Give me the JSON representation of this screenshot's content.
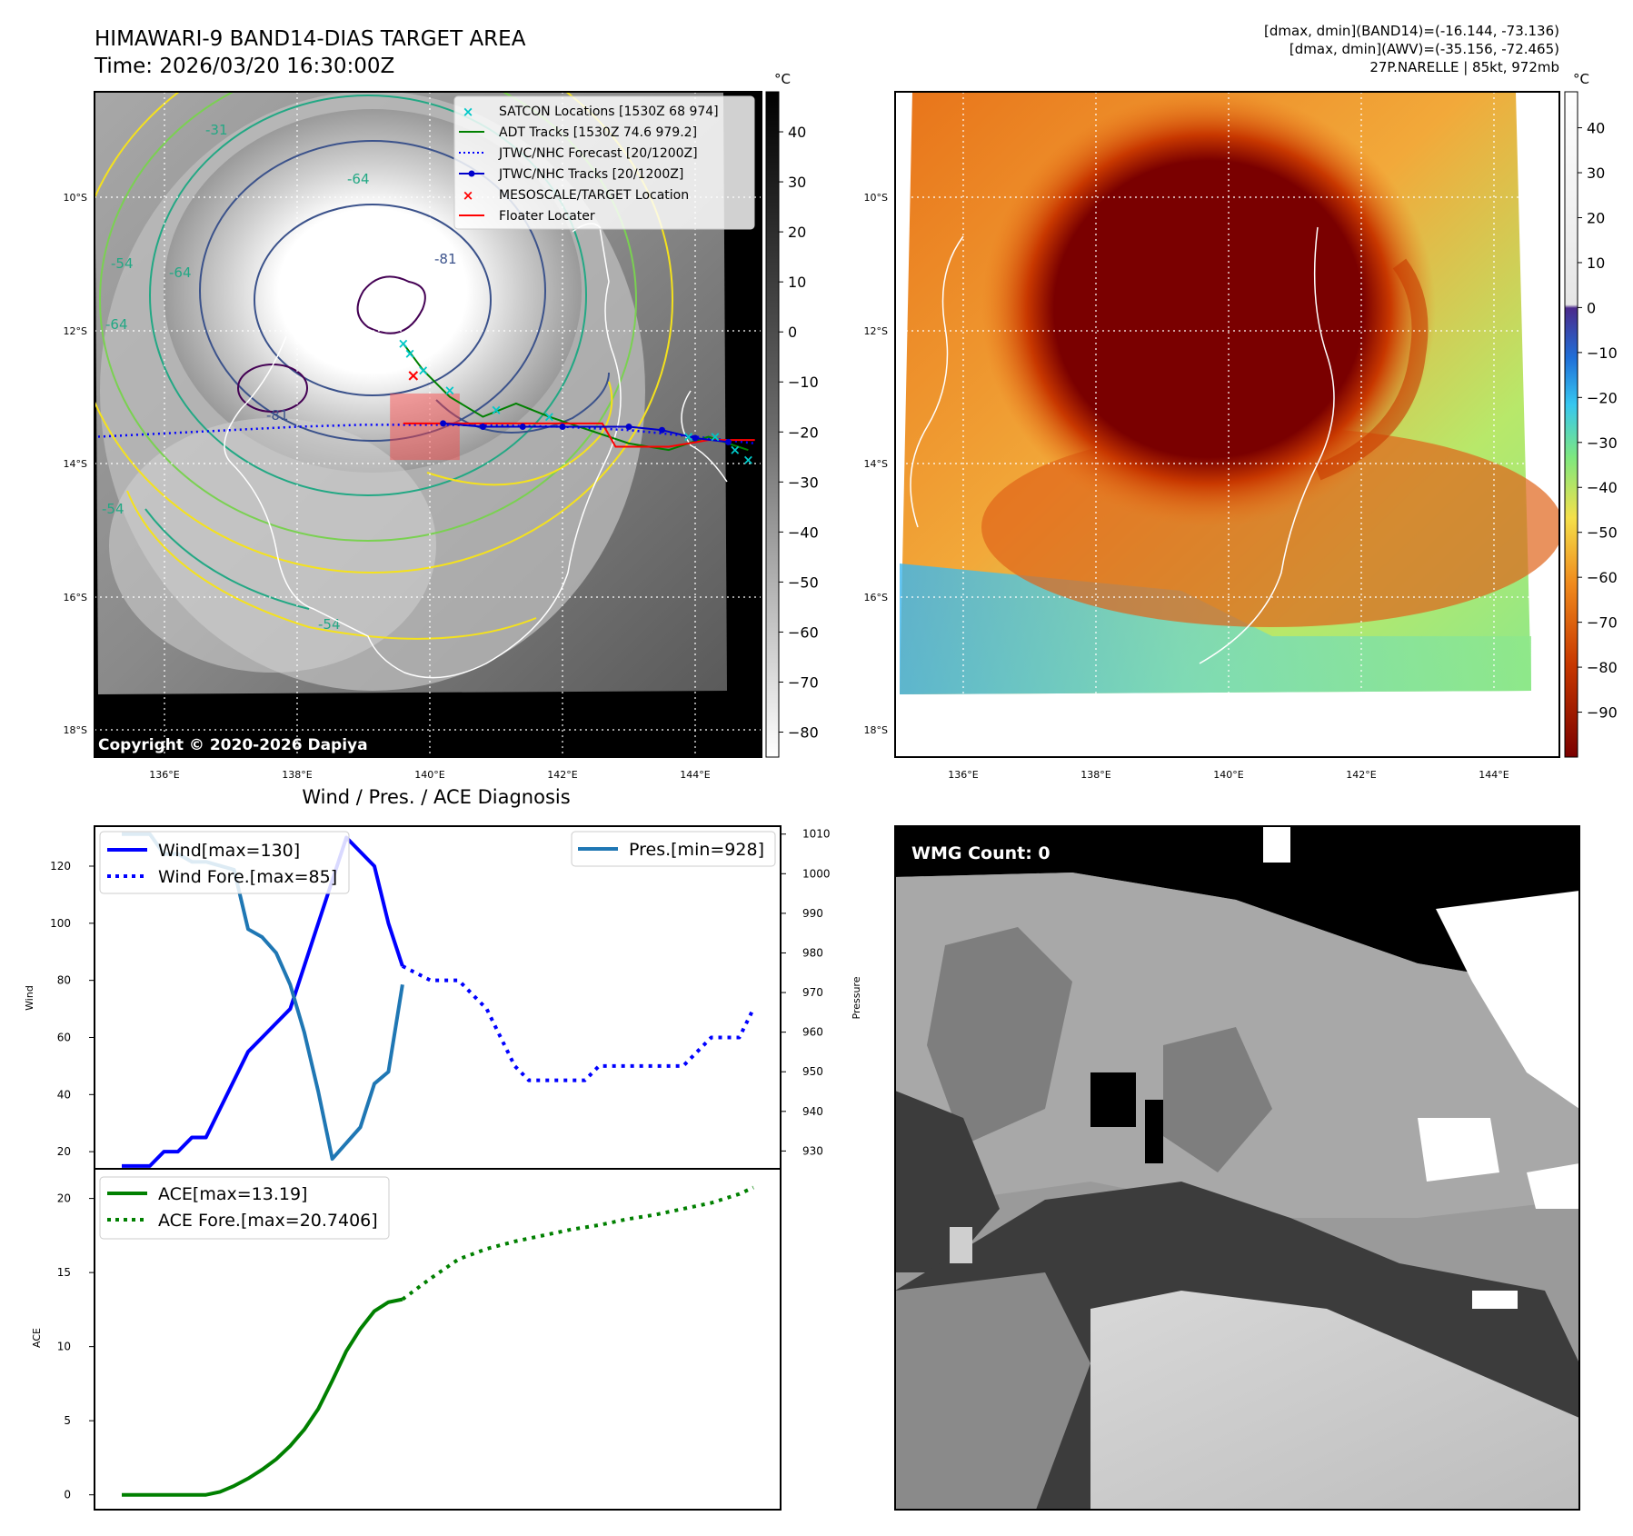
{
  "header": {
    "title_line1": "HIMAWARI-9 BAND14-DIAS TARGET AREA",
    "title_line2": "Time: 2026/03/20 16:30:00Z",
    "info_line1": "[dmax, dmin](BAND14)=(-16.144, -73.136)",
    "info_line2": "[dmax, dmin](AWV)=(-35.156, -72.465)",
    "info_line3": "27P.NARELLE | 85kt, 972mb"
  },
  "colors": {
    "wind": "#0000ff",
    "pressure": "#1f77b4",
    "ace": "#008000",
    "satcon": "#00c8c8",
    "adt": "#008000",
    "jtwc_forecast": "#0000ff",
    "jtwc_track": "#0000cc",
    "target": "#ff0000",
    "floater": "#ff0000",
    "contour_yellow": "#f5e21c",
    "contour_green": "#7ad151",
    "contour_teal": "#22a884",
    "contour_blue": "#3b528b",
    "contour_purple": "#440154"
  },
  "map_left": {
    "unit_label": "°C",
    "colorbar_ticks": [
      "40",
      "30",
      "20",
      "10",
      "0",
      "−10",
      "−20",
      "−30",
      "−40",
      "−50",
      "−60",
      "−70",
      "−80"
    ],
    "colorbar_range": [
      48,
      -85
    ],
    "lat_labels": [
      "10°S",
      "12°S",
      "14°S",
      "16°S",
      "18°S"
    ],
    "lon_labels": [
      "136°E",
      "138°E",
      "140°E",
      "142°E",
      "144°E"
    ],
    "contour_labels": [
      "-31",
      "-64",
      "-81",
      "-54",
      "-64",
      "-81",
      "-54",
      "-64",
      "-54"
    ],
    "copyright": "Copyright © 2020-2026 Dapiya",
    "legend": [
      {
        "label": "SATCON Locations [1530Z 68 974]",
        "icon": "x-marker-icon",
        "color": "#00c8c8"
      },
      {
        "label": "ADT Tracks [1530Z 74.6 979.2]",
        "icon": "solid-line-icon",
        "color": "#008000"
      },
      {
        "label": "JTWC/NHC Forecast [20/1200Z]",
        "icon": "dotted-line-icon",
        "color": "#0000ff"
      },
      {
        "label": "JTWC/NHC Tracks [20/1200Z]",
        "icon": "line-dot-icon",
        "color": "#0000cc"
      },
      {
        "label": "MESOSCALE/TARGET Location",
        "icon": "x-marker-icon",
        "color": "#ff0000"
      },
      {
        "label": "Floater Locater",
        "icon": "solid-line-icon",
        "color": "#ff0000"
      }
    ],
    "tracks": {
      "jtwc_forecast_lonlat": [
        [
          135.0,
          -13.6
        ],
        [
          136.0,
          -13.55
        ],
        [
          137.0,
          -13.5
        ],
        [
          138.0,
          -13.45
        ],
        [
          139.0,
          -13.42
        ],
        [
          140.0,
          -13.42
        ],
        [
          141.0,
          -13.43
        ],
        [
          142.0,
          -13.45
        ],
        [
          143.0,
          -13.5
        ],
        [
          144.0,
          -13.6
        ],
        [
          144.9,
          -13.7
        ]
      ],
      "jtwc_track_lonlat": [
        [
          140.2,
          -13.4
        ],
        [
          140.8,
          -13.45
        ],
        [
          141.4,
          -13.45
        ],
        [
          142.0,
          -13.45
        ],
        [
          143.0,
          -13.45
        ],
        [
          143.5,
          -13.5
        ],
        [
          144.0,
          -13.62
        ],
        [
          144.5,
          -13.68
        ]
      ],
      "floater_lonlat": [
        [
          139.6,
          -13.4
        ],
        [
          142.6,
          -13.4
        ],
        [
          142.8,
          -13.75
        ],
        [
          143.6,
          -13.75
        ],
        [
          144.2,
          -13.65
        ],
        [
          144.9,
          -13.65
        ]
      ],
      "adt_lonlat": [
        [
          139.6,
          -12.2
        ],
        [
          139.9,
          -12.6
        ],
        [
          140.3,
          -13.0
        ],
        [
          140.8,
          -13.3
        ],
        [
          141.3,
          -13.1
        ],
        [
          141.8,
          -13.3
        ],
        [
          142.4,
          -13.5
        ],
        [
          143.0,
          -13.7
        ],
        [
          143.6,
          -13.8
        ],
        [
          144.2,
          -13.6
        ],
        [
          144.8,
          -13.8
        ]
      ],
      "satcon_lonlat": [
        [
          139.6,
          -12.2
        ],
        [
          139.7,
          -12.35
        ],
        [
          139.9,
          -12.6
        ],
        [
          140.3,
          -12.9
        ],
        [
          141.0,
          -13.2
        ],
        [
          141.8,
          -13.3
        ],
        [
          143.9,
          -13.6
        ],
        [
          144.3,
          -13.6
        ],
        [
          144.6,
          -13.8
        ],
        [
          144.8,
          -13.95
        ]
      ],
      "target_lonlat": [
        139.75,
        -12.68
      ],
      "floater_box_lonlat": [
        139.4,
        -12.95,
        140.45,
        -13.95
      ]
    }
  },
  "map_right": {
    "unit_label": "°C",
    "colorbar_ticks": [
      "40",
      "30",
      "20",
      "10",
      "0",
      "−10",
      "−20",
      "−30",
      "−40",
      "−50",
      "−60",
      "−70",
      "−80",
      "−90"
    ],
    "colorbar_range": [
      48,
      -100
    ],
    "lat_labels": [
      "10°S",
      "12°S",
      "14°S",
      "16°S",
      "18°S"
    ],
    "lon_labels": [
      "136°E",
      "138°E",
      "140°E",
      "142°E",
      "144°E"
    ]
  },
  "wind_pres": {
    "title": "Wind / Pres. / ACE Diagnosis",
    "ylabel_left": "Wind",
    "ylabel_right": "Pressure",
    "left_ticks": [
      "20",
      "40",
      "60",
      "80",
      "100",
      "120"
    ],
    "right_ticks": [
      "930",
      "940",
      "950",
      "960",
      "970",
      "980",
      "990",
      "1000",
      "1010"
    ],
    "legend_wind": "Wind[max=130]",
    "legend_wind_fore": "Wind Fore.[max=85]",
    "legend_pres": "Pres.[min=928]"
  },
  "ace": {
    "ylabel": "ACE",
    "ticks": [
      "0",
      "5",
      "10",
      "15",
      "20"
    ],
    "legend_ace": "ACE[max=13.19]",
    "legend_ace_fore": "ACE Fore.[max=20.7406]"
  },
  "wmg": {
    "label": "WMG Count: 0"
  },
  "chart_data": [
    {
      "type": "line",
      "title": "Wind / Pres. / ACE Diagnosis",
      "xlabel": "",
      "ylabel": "Wind",
      "ylim": [
        14,
        134
      ],
      "y2label": "Pressure",
      "y2lim": [
        925.5,
        1012
      ],
      "x": [
        0,
        1,
        2,
        3,
        4,
        5,
        6,
        7,
        8,
        9,
        10,
        11,
        12,
        13,
        14,
        15,
        16,
        17,
        18,
        19,
        20,
        21,
        22,
        23,
        24,
        25,
        26,
        27,
        28,
        29,
        30,
        31,
        32,
        33,
        34,
        35,
        36,
        37,
        38,
        39,
        40,
        41,
        42,
        43,
        44,
        45
      ],
      "series": [
        {
          "name": "Wind[max=130]",
          "style": "solid",
          "x": [
            0,
            2,
            3,
            4,
            5,
            6,
            7,
            8,
            9,
            10,
            11,
            12,
            13,
            14,
            15,
            16,
            17,
            18,
            19,
            20
          ],
          "values": [
            15,
            15,
            20,
            20,
            25,
            25,
            35,
            45,
            55,
            60,
            65,
            70,
            85,
            100,
            115,
            130,
            125,
            120,
            100,
            85
          ]
        },
        {
          "name": "Wind Fore.[max=85]",
          "style": "dotted",
          "x": [
            20,
            22,
            23,
            24,
            25,
            26,
            27,
            28,
            29,
            30,
            31,
            32,
            33,
            34,
            35,
            36,
            37,
            38,
            39,
            40,
            41,
            42,
            43,
            44,
            45
          ],
          "values": [
            85,
            80,
            80,
            80,
            75,
            70,
            60,
            50,
            45,
            45,
            45,
            45,
            45,
            50,
            50,
            50,
            50,
            50,
            50,
            50,
            55,
            60,
            60,
            60,
            70
          ]
        },
        {
          "name": "Pres.[min=928]",
          "axis": "right",
          "style": "solid",
          "x": [
            0,
            2,
            3,
            4,
            5,
            6,
            7,
            8,
            9,
            10,
            11,
            12,
            13,
            14,
            15,
            16,
            17,
            18,
            19,
            20
          ],
          "values": [
            1010,
            1010,
            1005,
            1005,
            1003,
            1003,
            1002,
            1001,
            986,
            984,
            980,
            972,
            960,
            945,
            928,
            932,
            936,
            947,
            950,
            972
          ]
        }
      ]
    },
    {
      "type": "line",
      "title": "",
      "xlabel": "",
      "ylabel": "ACE",
      "ylim": [
        -1,
        22
      ],
      "x": [
        0,
        1,
        2,
        3,
        4,
        5,
        6,
        7,
        8,
        9,
        10,
        11,
        12,
        13,
        14,
        15,
        16,
        17,
        18,
        19,
        20,
        21,
        22,
        23,
        24,
        25,
        26,
        27,
        28,
        29,
        30,
        31,
        32,
        33,
        34,
        35,
        36,
        37,
        38,
        39,
        40,
        41,
        42,
        43,
        44,
        45
      ],
      "series": [
        {
          "name": "ACE[max=13.19]",
          "style": "solid",
          "x": [
            0,
            2,
            3,
            4,
            5,
            6,
            7,
            8,
            9,
            10,
            11,
            12,
            13,
            14,
            15,
            16,
            17,
            18,
            19,
            20
          ],
          "values": [
            0,
            0,
            0,
            0,
            0,
            0,
            0.2,
            0.6,
            1.1,
            1.7,
            2.4,
            3.3,
            4.4,
            5.8,
            7.7,
            9.7,
            11.2,
            12.4,
            13.0,
            13.19
          ]
        },
        {
          "name": "ACE Fore.[max=20.7406]",
          "style": "dotted",
          "x": [
            20,
            22,
            24,
            26,
            28,
            30,
            32,
            34,
            36,
            38,
            40,
            42,
            44,
            45
          ],
          "values": [
            13.19,
            14.6,
            15.9,
            16.6,
            17.1,
            17.5,
            17.9,
            18.2,
            18.6,
            18.9,
            19.3,
            19.7,
            20.3,
            20.74
          ]
        }
      ]
    }
  ]
}
